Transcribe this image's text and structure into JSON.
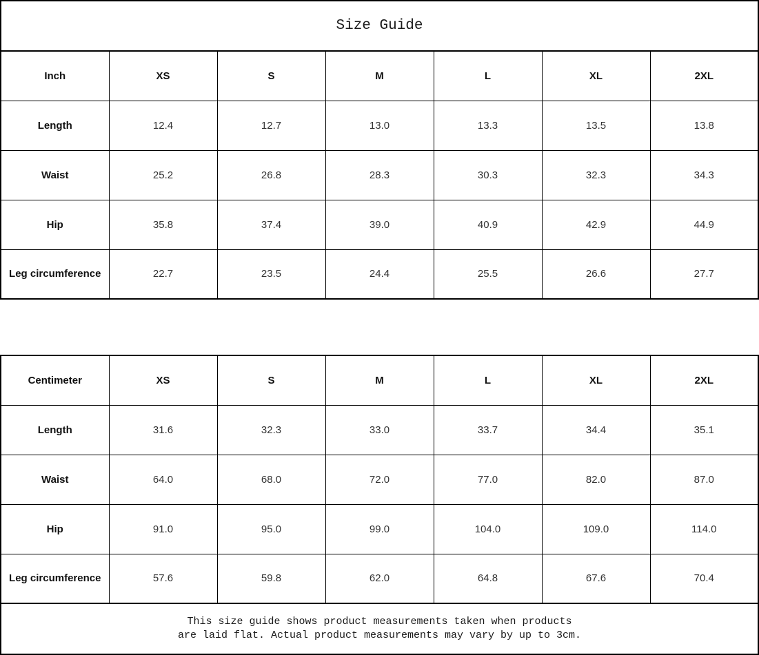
{
  "title": "Size Guide",
  "colors": {
    "background": "#ffffff",
    "border": "#000000",
    "label_text": "#111111",
    "value_text": "#333333"
  },
  "tables": [
    {
      "unit_label": "Inch",
      "sizes": [
        "XS",
        "S",
        "M",
        "L",
        "XL",
        "2XL"
      ],
      "rows": [
        {
          "label": "Length",
          "values": [
            "12.4",
            "12.7",
            "13.0",
            "13.3",
            "13.5",
            "13.8"
          ]
        },
        {
          "label": "Waist",
          "values": [
            "25.2",
            "26.8",
            "28.3",
            "30.3",
            "32.3",
            "34.3"
          ]
        },
        {
          "label": "Hip",
          "values": [
            "35.8",
            "37.4",
            "39.0",
            "40.9",
            "42.9",
            "44.9"
          ]
        },
        {
          "label": "Leg circumference",
          "values": [
            "22.7",
            "23.5",
            "24.4",
            "25.5",
            "26.6",
            "27.7"
          ]
        }
      ]
    },
    {
      "unit_label": "Centimeter",
      "sizes": [
        "XS",
        "S",
        "M",
        "L",
        "XL",
        "2XL"
      ],
      "rows": [
        {
          "label": "Length",
          "values": [
            "31.6",
            "32.3",
            "33.0",
            "33.7",
            "34.4",
            "35.1"
          ]
        },
        {
          "label": "Waist",
          "values": [
            "64.0",
            "68.0",
            "72.0",
            "77.0",
            "82.0",
            "87.0"
          ]
        },
        {
          "label": "Hip",
          "values": [
            "91.0",
            "95.0",
            "99.0",
            "104.0",
            "109.0",
            "114.0"
          ]
        },
        {
          "label": "Leg circumference",
          "values": [
            "57.6",
            "59.8",
            "62.0",
            "64.8",
            "67.6",
            "70.4"
          ]
        }
      ]
    }
  ],
  "footer": {
    "line1": "This size guide shows product measurements taken when products",
    "line2": "are laid flat. Actual product measurements may vary by up to 3cm."
  }
}
